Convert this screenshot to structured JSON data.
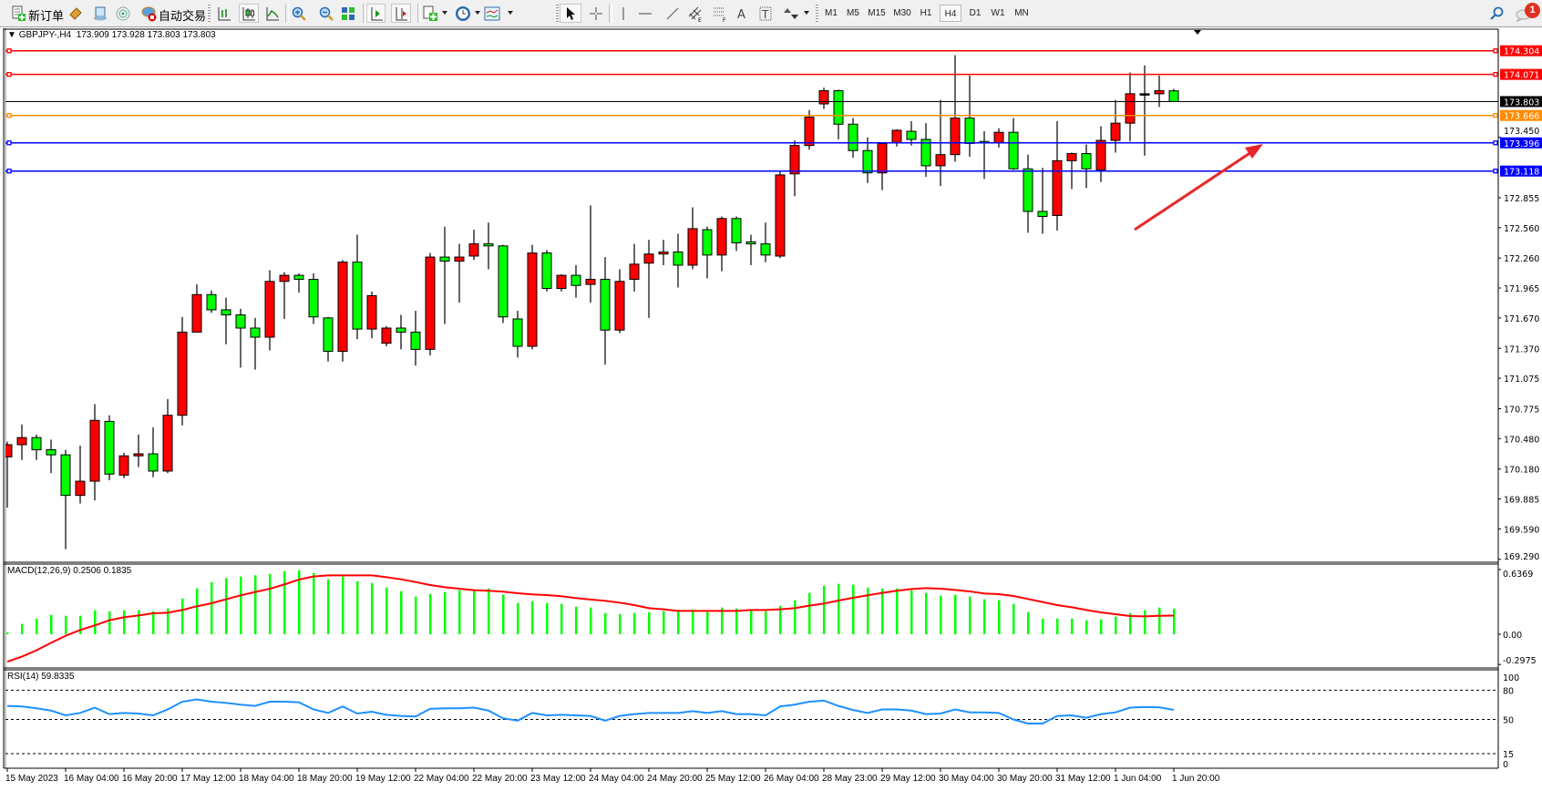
{
  "toolbar": {
    "new_order_label": "新订单",
    "auto_trading_label": "自动交易",
    "icons": [
      "new-order-icon",
      "market-watch-icon",
      "data-window-icon",
      "navigator-icon",
      "auto-trading-icon",
      "bar-chart-icon",
      "candlestick-icon",
      "line-chart-icon",
      "zoom-in-icon",
      "zoom-out-icon",
      "tile-windows-icon",
      "auto-scroll-icon",
      "chart-shift-icon",
      "new-chart-icon",
      "periods-clock-icon",
      "indicators-icon",
      "cursor-icon",
      "crosshair-icon",
      "vertical-line-icon",
      "horizontal-line-icon",
      "trend-line-icon",
      "equidistant-channel-icon",
      "fibonacci-icon",
      "text-icon",
      "text-label-icon",
      "arrows-icon",
      "search-icon",
      "notifications-icon"
    ],
    "timeframes": [
      "M1",
      "M5",
      "M15",
      "M30",
      "H1",
      "H4",
      "D1",
      "W1",
      "MN"
    ],
    "active_timeframe": "H4",
    "notification_count": "1"
  },
  "chart_header": {
    "symbol": "GBPJPY-,H4",
    "ohlc": "173.909 173.928 173.803 173.803"
  },
  "macd_label": "MACD(12,26,9) 0.2506 0.1835",
  "rsi_label": "RSI(14) 59.8335",
  "colors": {
    "bull_candle": "#ff0000",
    "bear_candle": "#00ff00",
    "macd_histogram": "#00ff00",
    "macd_signal": "#ff0000",
    "rsi_line": "#1e90ff",
    "annotation_arrow": "#e8262a"
  },
  "chart_data": {
    "type": "candlestick",
    "symbol": "GBPJPY-",
    "timeframe": "H4",
    "ylim": [
      169.26,
      174.5
    ],
    "price_ticks": [
      "173.450",
      "172.855",
      "172.560",
      "172.260",
      "171.965",
      "171.670",
      "171.370",
      "171.075",
      "170.775",
      "170.480",
      "170.180",
      "169.885",
      "169.590",
      "169.290"
    ],
    "time_labels": [
      "15 May 2023",
      "16 May 04:00",
      "16 May 20:00",
      "17 May 12:00",
      "18 May 04:00",
      "18 May 20:00",
      "19 May 12:00",
      "22 May 04:00",
      "22 May 20:00",
      "23 May 12:00",
      "24 May 04:00",
      "24 May 20:00",
      "25 May 12:00",
      "26 May 04:00",
      "28 May 23:00",
      "29 May 12:00",
      "30 May 04:00",
      "30 May 20:00",
      "31 May 12:00",
      "1 Jun 04:00",
      "1 Jun 20:00"
    ],
    "time_label_every_n_bars": 4,
    "candles_ohlc": [
      [
        170.3,
        170.45,
        169.8,
        170.42
      ],
      [
        170.42,
        170.62,
        170.27,
        170.49
      ],
      [
        170.49,
        170.52,
        170.27,
        170.37
      ],
      [
        170.37,
        170.47,
        170.14,
        170.32
      ],
      [
        170.32,
        170.37,
        169.39,
        169.92
      ],
      [
        169.92,
        170.41,
        169.84,
        170.06
      ],
      [
        170.06,
        170.82,
        169.87,
        170.66
      ],
      [
        170.65,
        170.71,
        170.07,
        170.13
      ],
      [
        170.12,
        170.34,
        170.09,
        170.31
      ],
      [
        170.31,
        170.52,
        170.2,
        170.33
      ],
      [
        170.33,
        170.59,
        170.1,
        170.16
      ],
      [
        170.16,
        170.87,
        170.14,
        170.71
      ],
      [
        170.71,
        171.68,
        170.61,
        171.53
      ],
      [
        171.53,
        172.0,
        171.53,
        171.9
      ],
      [
        171.9,
        171.94,
        171.72,
        171.75
      ],
      [
        171.75,
        171.87,
        171.41,
        171.7
      ],
      [
        171.7,
        171.76,
        171.18,
        171.57
      ],
      [
        171.57,
        171.67,
        171.16,
        171.48
      ],
      [
        171.48,
        172.14,
        171.35,
        172.03
      ],
      [
        172.03,
        172.12,
        171.66,
        172.09
      ],
      [
        172.09,
        172.11,
        171.92,
        172.05
      ],
      [
        172.05,
        172.11,
        171.61,
        171.68
      ],
      [
        171.67,
        171.68,
        171.24,
        171.34
      ],
      [
        171.34,
        172.24,
        171.24,
        172.22
      ],
      [
        172.22,
        172.49,
        171.46,
        171.56
      ],
      [
        171.56,
        171.93,
        171.47,
        171.89
      ],
      [
        171.42,
        171.59,
        171.39,
        171.57
      ],
      [
        171.57,
        171.7,
        171.36,
        171.53
      ],
      [
        171.53,
        171.74,
        171.2,
        171.36
      ],
      [
        171.36,
        172.31,
        171.3,
        172.27
      ],
      [
        172.27,
        172.57,
        171.61,
        172.23
      ],
      [
        172.23,
        172.4,
        171.82,
        172.27
      ],
      [
        172.28,
        172.54,
        172.24,
        172.4
      ],
      [
        172.4,
        172.61,
        172.15,
        172.38
      ],
      [
        172.38,
        172.39,
        171.62,
        171.68
      ],
      [
        171.66,
        171.74,
        171.28,
        171.39
      ],
      [
        171.39,
        172.39,
        171.36,
        172.31
      ],
      [
        172.31,
        172.34,
        171.93,
        171.96
      ],
      [
        171.96,
        172.1,
        171.93,
        172.09
      ],
      [
        172.09,
        172.19,
        171.87,
        171.99
      ],
      [
        172.0,
        172.78,
        171.82,
        172.05
      ],
      [
        172.05,
        172.27,
        171.21,
        171.55
      ],
      [
        171.55,
        172.15,
        171.52,
        172.03
      ],
      [
        172.05,
        172.4,
        171.93,
        172.2
      ],
      [
        172.21,
        172.44,
        171.67,
        172.3
      ],
      [
        172.3,
        172.44,
        172.19,
        172.32
      ],
      [
        172.32,
        172.5,
        171.97,
        172.19
      ],
      [
        172.19,
        172.76,
        172.15,
        172.55
      ],
      [
        172.54,
        172.57,
        172.06,
        172.29
      ],
      [
        172.29,
        172.67,
        172.13,
        172.65
      ],
      [
        172.65,
        172.67,
        172.33,
        172.41
      ],
      [
        172.42,
        172.49,
        172.19,
        172.4
      ],
      [
        172.4,
        172.61,
        172.22,
        172.29
      ],
      [
        172.28,
        173.12,
        172.26,
        173.08
      ],
      [
        173.09,
        173.42,
        172.87,
        173.37
      ],
      [
        173.37,
        173.72,
        173.33,
        173.65
      ],
      [
        173.78,
        173.94,
        173.73,
        173.91
      ],
      [
        173.91,
        173.92,
        173.43,
        173.58
      ],
      [
        173.58,
        173.64,
        173.25,
        173.32
      ],
      [
        173.32,
        173.45,
        173.0,
        173.1
      ],
      [
        173.1,
        173.4,
        172.93,
        173.39
      ],
      [
        173.4,
        173.53,
        173.36,
        173.52
      ],
      [
        173.51,
        173.61,
        173.37,
        173.43
      ],
      [
        173.43,
        173.59,
        173.06,
        173.17
      ],
      [
        173.17,
        173.82,
        172.97,
        173.28
      ],
      [
        173.28,
        174.26,
        173.21,
        173.64
      ],
      [
        173.64,
        174.06,
        173.26,
        173.39
      ],
      [
        173.41,
        173.51,
        173.04,
        173.4
      ],
      [
        173.4,
        173.54,
        173.35,
        173.5
      ],
      [
        173.5,
        173.64,
        173.13,
        173.14
      ],
      [
        173.14,
        173.28,
        172.51,
        172.72
      ],
      [
        172.72,
        173.15,
        172.5,
        172.67
      ],
      [
        172.68,
        173.61,
        172.53,
        173.22
      ],
      [
        173.22,
        173.3,
        172.94,
        173.29
      ],
      [
        173.29,
        173.38,
        172.95,
        173.14
      ],
      [
        173.13,
        173.56,
        173.01,
        173.42
      ],
      [
        173.42,
        173.82,
        173.3,
        173.59
      ],
      [
        173.59,
        174.09,
        173.41,
        173.88
      ],
      [
        173.88,
        174.16,
        173.27,
        173.88
      ],
      [
        173.88,
        174.06,
        173.75,
        173.91
      ],
      [
        173.909,
        173.928,
        173.803,
        173.803
      ]
    ],
    "horizontal_lines": [
      {
        "price": "174.304",
        "color": "#ff0000"
      },
      {
        "price": "174.071",
        "color": "#ff0000"
      },
      {
        "price": "173.666",
        "color": "#ff8c00"
      },
      {
        "price": "173.396",
        "color": "#0000ff"
      },
      {
        "price": "173.118",
        "color": "#0000ff"
      }
    ],
    "current_price": "173.803",
    "macd": {
      "params": "12,26,9",
      "axis_labels": [
        "0.6369",
        "0.00",
        "-0.2975"
      ],
      "histogram": [
        0.018,
        0.102,
        0.155,
        0.191,
        0.182,
        0.182,
        0.236,
        0.227,
        0.236,
        0.236,
        0.227,
        0.254,
        0.353,
        0.451,
        0.514,
        0.553,
        0.568,
        0.58,
        0.595,
        0.622,
        0.631,
        0.604,
        0.541,
        0.568,
        0.523,
        0.505,
        0.46,
        0.424,
        0.371,
        0.398,
        0.416,
        0.434,
        0.434,
        0.451,
        0.389,
        0.308,
        0.326,
        0.308,
        0.299,
        0.272,
        0.263,
        0.209,
        0.2,
        0.209,
        0.218,
        0.227,
        0.227,
        0.245,
        0.218,
        0.263,
        0.254,
        0.245,
        0.227,
        0.281,
        0.335,
        0.407,
        0.478,
        0.496,
        0.487,
        0.46,
        0.451,
        0.451,
        0.433,
        0.407,
        0.38,
        0.389,
        0.371,
        0.344,
        0.335,
        0.299,
        0.218,
        0.155,
        0.155,
        0.155,
        0.137,
        0.146,
        0.173,
        0.209,
        0.236,
        0.263,
        0.2506
      ],
      "signal": [
        -0.27,
        -0.22,
        -0.158,
        -0.084,
        -0.015,
        0.042,
        0.087,
        0.138,
        0.167,
        0.185,
        0.206,
        0.212,
        0.239,
        0.275,
        0.305,
        0.344,
        0.383,
        0.416,
        0.448,
        0.49,
        0.538,
        0.568,
        0.58,
        0.58,
        0.58,
        0.58,
        0.562,
        0.541,
        0.514,
        0.484,
        0.463,
        0.448,
        0.434,
        0.428,
        0.419,
        0.404,
        0.392,
        0.386,
        0.374,
        0.356,
        0.342,
        0.329,
        0.311,
        0.287,
        0.257,
        0.245,
        0.23,
        0.23,
        0.23,
        0.23,
        0.23,
        0.239,
        0.239,
        0.245,
        0.257,
        0.281,
        0.302,
        0.332,
        0.359,
        0.383,
        0.407,
        0.428,
        0.445,
        0.454,
        0.448,
        0.436,
        0.422,
        0.401,
        0.395,
        0.377,
        0.347,
        0.317,
        0.287,
        0.266,
        0.239,
        0.215,
        0.197,
        0.179,
        0.176,
        0.182,
        0.1835
      ]
    },
    "rsi": {
      "period": 14,
      "levels": [
        80,
        50,
        15
      ],
      "axis_labels": [
        "100",
        "80",
        "50",
        "15",
        "0"
      ],
      "values": [
        63.9,
        63.3,
        61.5,
        59.1,
        54.2,
        56.7,
        62.1,
        55.5,
        56.7,
        56.1,
        54.2,
        60.3,
        68.2,
        70.6,
        68.2,
        67.0,
        65.2,
        63.9,
        68.2,
        68.2,
        67.6,
        60.3,
        56.7,
        63.3,
        56.1,
        57.9,
        54.8,
        53.6,
        53.0,
        60.9,
        61.5,
        61.5,
        62.1,
        59.1,
        51.2,
        48.8,
        56.7,
        54.2,
        54.8,
        54.2,
        53.6,
        48.8,
        53.6,
        55.5,
        56.7,
        56.7,
        56.7,
        58.5,
        56.7,
        58.5,
        55.5,
        55.5,
        54.2,
        63.3,
        65.2,
        68.2,
        69.4,
        63.9,
        59.7,
        56.7,
        60.3,
        60.3,
        59.1,
        55.5,
        56.1,
        60.3,
        57.3,
        57.3,
        56.7,
        50.0,
        45.8,
        45.8,
        53.6,
        54.2,
        51.8,
        55.5,
        57.3,
        62.1,
        62.7,
        62.5,
        59.8335
      ]
    }
  }
}
